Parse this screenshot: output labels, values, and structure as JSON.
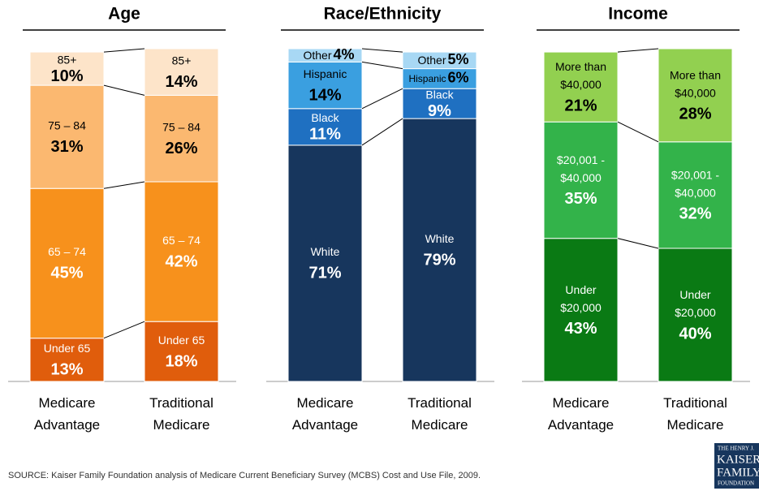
{
  "chart_data": [
    {
      "type": "stacked_bar",
      "title": "Age",
      "categories": [
        "Medicare\nAdvantage",
        "Traditional\nMedicare"
      ],
      "ylim": [
        0,
        100
      ],
      "series": [
        {
          "name": "Under 65",
          "color": "#e05d0c",
          "label_color": "#ffffff",
          "values": [
            13,
            18
          ],
          "value_labels": [
            "13%",
            "18%"
          ]
        },
        {
          "name": "65 – 74",
          "color": "#f7911c",
          "label_color": "#ffffff",
          "values": [
            45,
            42
          ],
          "value_labels": [
            "45%",
            "42%"
          ]
        },
        {
          "name": "75 – 84",
          "color": "#fbb870",
          "label_color": "#000000",
          "values": [
            31,
            26
          ],
          "value_labels": [
            "31%",
            "26%"
          ]
        },
        {
          "name": "85+",
          "color": "#fde4c9",
          "label_color": "#000000",
          "values": [
            10,
            14
          ],
          "value_labels": [
            "10%",
            "14%"
          ]
        }
      ]
    },
    {
      "type": "stacked_bar",
      "title": "Race/Ethnicity",
      "categories": [
        "Medicare\nAdvantage",
        "Traditional\nMedicare"
      ],
      "ylim": [
        0,
        100
      ],
      "series": [
        {
          "name": "White",
          "color": "#17365d",
          "label_color": "#ffffff",
          "values": [
            71,
            79
          ],
          "value_labels": [
            "71%",
            "79%"
          ]
        },
        {
          "name": "Black",
          "color": "#1f70c1",
          "label_color": "#ffffff",
          "values": [
            11,
            9
          ],
          "value_labels": [
            "11%",
            "9%"
          ]
        },
        {
          "name": "Hispanic",
          "color": "#3a9fe0",
          "label_color": "#000000",
          "values": [
            14,
            6
          ],
          "value_labels": [
            "14%",
            "6%"
          ]
        },
        {
          "name": "Other",
          "color": "#a8d8f4",
          "label_color": "#000000",
          "values": [
            4,
            5
          ],
          "value_labels": [
            "4%",
            "5%"
          ]
        }
      ]
    },
    {
      "type": "stacked_bar",
      "title": "Income",
      "categories": [
        "Medicare\nAdvantage",
        "Traditional\nMedicare"
      ],
      "ylim": [
        0,
        100
      ],
      "series": [
        {
          "name": "Under\n$20,000",
          "color": "#0a7a14",
          "label_color": "#ffffff",
          "values": [
            43,
            40
          ],
          "value_labels": [
            "43%",
            "40%"
          ]
        },
        {
          "name": "$20,001 -\n$40,000",
          "color": "#33b34a",
          "label_color": "#ffffff",
          "values": [
            35,
            32
          ],
          "value_labels": [
            "35%",
            "32%"
          ]
        },
        {
          "name": "More than\n$40,000",
          "color": "#92d050",
          "label_color": "#000000",
          "values": [
            21,
            28
          ],
          "value_labels": [
            "21%",
            "28%"
          ]
        }
      ]
    }
  ],
  "source": "SOURCE: Kaiser Family Foundation analysis of Medicare Current Beneficiary Survey (MCBS) Cost and Use File, 2009.",
  "logo": [
    "THE HENRY J.",
    "KAISER",
    "FAMILY",
    "FOUNDATION"
  ]
}
